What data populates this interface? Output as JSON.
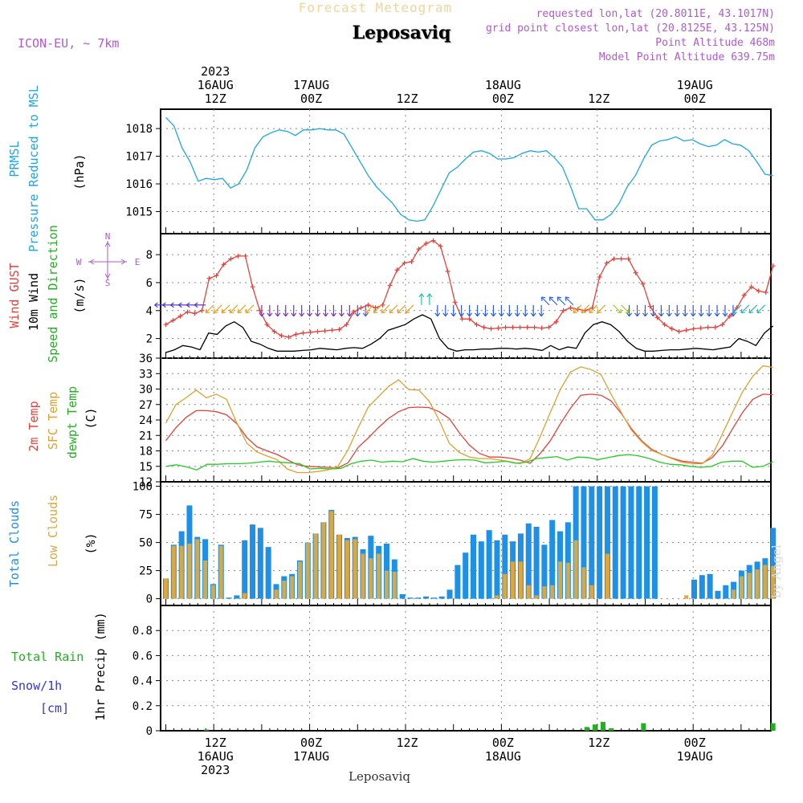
{
  "header": {
    "faint_title": "Forecast Meteogram",
    "station": "Leposaviq",
    "model": "ICON-EU, ~ 7km",
    "requested_point": "requested lon,lat (20.8011E, 43.1017N)",
    "grid_point": "grid point closest lon,lat (20.8125E, 43.125N)",
    "point_altitude": "Point Altitude 468m",
    "model_altitude": "Model Point Altitude 639.75m"
  },
  "footer": {
    "station": "Leposaviq",
    "watermark": "by Angel",
    "legend_rain": "Total  Rain",
    "legend_snow": "Snow/1h",
    "legend_cm": "[cm]"
  },
  "colors": {
    "pressure": "#1ca6e8",
    "gust": "#e8403a",
    "wind": "#000000",
    "temp2m": "#e8403a",
    "sfc": "#e0a030",
    "dewpt": "#22cc22",
    "total_clouds": "#1e90e6",
    "low_clouds": "#d9a840",
    "rain": "#22b022",
    "purple": "#b257d6"
  },
  "chart_data": {
    "time_axis": {
      "top_labels": [
        {
          "h": 6,
          "lines": [
            "2023",
            "16AUG",
            "12Z"
          ]
        },
        {
          "h": 18,
          "lines": [
            "17AUG",
            "00Z"
          ]
        },
        {
          "h": 30,
          "lines": [
            "12Z"
          ]
        },
        {
          "h": 42,
          "lines": [
            "18AUG",
            "00Z"
          ]
        },
        {
          "h": 54,
          "lines": [
            "12Z"
          ]
        },
        {
          "h": 66,
          "lines": [
            "19AUG",
            "00Z"
          ]
        }
      ],
      "bottom_labels": [
        {
          "h": 6,
          "lines": [
            "12Z",
            "16AUG",
            "2023"
          ]
        },
        {
          "h": 18,
          "lines": [
            "00Z",
            "17AUG"
          ]
        },
        {
          "h": 30,
          "lines": [
            "12Z"
          ]
        },
        {
          "h": 42,
          "lines": [
            "00Z",
            "18AUG"
          ]
        },
        {
          "h": 54,
          "lines": [
            "12Z"
          ]
        },
        {
          "h": 66,
          "lines": [
            "00Z",
            "19AUG"
          ]
        }
      ],
      "hour_range": [
        0,
        76
      ]
    },
    "panels": [
      {
        "type": "line",
        "id": "pressure",
        "labels": [
          "PRMSL",
          "Pressure Reduced to MSL",
          "(hPa)"
        ],
        "ylim": [
          1014.2,
          1018.7
        ],
        "yticks": [
          1015,
          1016,
          1017,
          1018
        ],
        "series": [
          {
            "name": "PRMSL",
            "values": [
              1018.4,
              1018.1,
              1017.3,
              1016.8,
              1016.1,
              1016.2,
              1016.15,
              1016.2,
              1015.85,
              1016.0,
              1016.5,
              1017.3,
              1017.7,
              1017.85,
              1017.95,
              1017.9,
              1017.75,
              1017.95,
              1017.95,
              1018.0,
              1017.95,
              1017.95,
              1017.8,
              1017.3,
              1016.8,
              1016.3,
              1015.9,
              1015.6,
              1015.3,
              1014.9,
              1014.7,
              1014.65,
              1014.7,
              1015.2,
              1015.8,
              1016.4,
              1016.6,
              1016.9,
              1017.15,
              1017.2,
              1017.1,
              1016.9,
              1016.9,
              1016.95,
              1017.1,
              1017.2,
              1017.15,
              1017.2,
              1016.95,
              1016.6,
              1015.9,
              1015.1,
              1015.1,
              1014.7,
              1014.7,
              1014.9,
              1015.3,
              1015.9,
              1016.3,
              1016.9,
              1017.4,
              1017.55,
              1017.6,
              1017.7,
              1017.55,
              1017.6,
              1017.45,
              1017.35,
              1017.4,
              1017.6,
              1017.45,
              1017.4,
              1017.2,
              1016.8,
              1016.35,
              1016.3
            ]
          }
        ]
      },
      {
        "type": "line",
        "id": "wind",
        "labels": [
          "Wind GUST",
          "10m Wind",
          "Speed and Direction",
          "(m/s)"
        ],
        "ylim": [
          0.6,
          9.5
        ],
        "yticks": [
          2,
          4,
          6,
          8
        ],
        "compass": {
          "n": "N",
          "s": "S",
          "w": "W",
          "e": "E"
        },
        "series": [
          {
            "name": "Wind GUST",
            "marker": "+",
            "values": [
              3.0,
              3.3,
              3.6,
              3.9,
              3.8,
              4.0,
              6.3,
              6.5,
              7.3,
              7.7,
              7.9,
              7.9,
              5.7,
              4.0,
              3.0,
              2.5,
              2.2,
              2.1,
              2.3,
              2.4,
              2.45,
              2.5,
              2.55,
              2.6,
              2.65,
              3.0,
              3.9,
              4.2,
              4.4,
              4.2,
              4.4,
              5.8,
              6.9,
              7.4,
              7.5,
              8.4,
              8.8,
              9.0,
              8.6,
              6.8,
              4.6,
              3.4,
              3.4,
              3.0,
              2.8,
              2.7,
              2.75,
              2.8,
              2.8,
              2.8,
              2.8,
              2.8,
              2.75,
              2.8,
              3.2,
              4.0,
              4.2,
              4.1,
              4.0,
              4.2,
              6.4,
              7.4,
              7.7,
              7.7,
              7.7,
              6.7,
              5.9,
              4.3,
              3.5,
              3.0,
              2.7,
              2.5,
              2.6,
              2.7,
              2.75,
              2.8,
              2.8,
              3.0,
              3.6,
              4.2,
              5.1,
              5.7,
              5.4,
              5.3,
              7.2
            ]
          },
          {
            "name": "10m Wind",
            "marker": "",
            "values": [
              1.0,
              1.2,
              1.5,
              1.4,
              1.2,
              2.4,
              2.3,
              2.9,
              3.2,
              2.8,
              1.8,
              1.6,
              1.3,
              1.1,
              1.1,
              1.1,
              1.15,
              1.2,
              1.3,
              1.25,
              1.2,
              1.3,
              1.35,
              1.3,
              1.6,
              2.0,
              2.6,
              2.8,
              3.0,
              3.4,
              3.7,
              3.4,
              2.0,
              1.3,
              1.1,
              1.2,
              1.2,
              1.25,
              1.25,
              1.3,
              1.3,
              1.25,
              1.3,
              1.25,
              1.15,
              1.5,
              1.2,
              1.4,
              1.3,
              2.4,
              3.0,
              3.2,
              3.0,
              2.5,
              1.8,
              1.3,
              1.1,
              1.1,
              1.15,
              1.2,
              1.2,
              1.25,
              1.3,
              1.25,
              1.2,
              1.3,
              1.4,
              2.0,
              1.8,
              1.5,
              2.4,
              2.9
            ]
          }
        ],
        "barbs": [
          {
            "from": 0,
            "to": 6,
            "dir": "W",
            "color": "#5533dd"
          },
          {
            "from": 6,
            "to": 12,
            "dir": "SW",
            "color": "#e8a020"
          },
          {
            "from": 12,
            "to": 24,
            "dir": "N",
            "color": "#7a2ad8"
          },
          {
            "from": 24,
            "to": 26,
            "dir": "N",
            "color": "#3a5ae8"
          },
          {
            "from": 26,
            "to": 32,
            "dir": "SW",
            "color": "#e8a020"
          },
          {
            "from": 32,
            "to": 34,
            "dir": "S",
            "color": "#22bbbb"
          },
          {
            "from": 34,
            "to": 48,
            "dir": "N",
            "color": "#2a5ae8"
          },
          {
            "from": 48,
            "to": 52,
            "dir": "NW",
            "color": "#3a6ae8"
          },
          {
            "from": 52,
            "to": 56,
            "dir": "SW",
            "color": "#e8a020"
          },
          {
            "from": 56,
            "to": 58,
            "dir": "SE",
            "color": "#99cc22"
          },
          {
            "from": 58,
            "to": 72,
            "dir": "N",
            "color": "#2a5ae8"
          },
          {
            "from": 72,
            "to": 76,
            "dir": "SW",
            "color": "#22bbbb"
          }
        ]
      },
      {
        "type": "line",
        "id": "temp",
        "labels": [
          "2m Temp",
          "SFC Temp",
          "dewpt Temp",
          "(C)"
        ],
        "ylim": [
          12,
          36
        ],
        "yticks": [
          12,
          15,
          18,
          21,
          24,
          27,
          30,
          33,
          36
        ],
        "series": [
          {
            "name": "2m Temp",
            "values": [
              20,
              22.5,
              24.5,
              25.8,
              25.8,
              25.6,
              25.0,
              23.3,
              20.6,
              18.8,
              18.0,
              17.3,
              16.3,
              15.3,
              15.0,
              14.9,
              14.8,
              14.7,
              15.7,
              18.7,
              20.5,
              22.5,
              24.3,
              25.6,
              26.4,
              26.5,
              26.4,
              25.6,
              24.3,
              21.5,
              19.1,
              17.5,
              16.8,
              16.8,
              16.6,
              16.2,
              15.6,
              17.5,
              20.0,
              23.3,
              26.3,
              28.8,
              29.0,
              28.8,
              27.7,
              25.3,
              22.3,
              20.0,
              18.3,
              17.3,
              16.6,
              16.0,
              15.8,
              15.6,
              16.7,
              19.0,
              22.3,
              25.5,
              28.0,
              29.0,
              28.9
            ]
          },
          {
            "name": "SFC Temp",
            "values": [
              23.4,
              27,
              28.3,
              29.8,
              28.3,
              29.0,
              28.0,
              23.5,
              19.5,
              17.8,
              17.0,
              16.3,
              14.5,
              13.8,
              13.8,
              14.0,
              14.3,
              15.0,
              18.2,
              22.5,
              26.5,
              28.5,
              30.5,
              31.8,
              29.9,
              29.8,
              27.7,
              24.0,
              19.5,
              17.7,
              16.8,
              16.5,
              16.5,
              16.2,
              15.9,
              15.5,
              16.5,
              20.8,
              25.5,
              30.0,
              33.3,
              34.3,
              33.8,
              32.8,
              29.0,
              25.5,
              22.0,
              19.8,
              18.1,
              17.3,
              16.5,
              15.8,
              15.5,
              15.5,
              17.2,
              21.3,
              25.5,
              29.5,
              32.5,
              34.5,
              34.2
            ]
          },
          {
            "name": "dewpt Temp",
            "values": [
              15.0,
              15.3,
              14.9,
              14.3,
              15.4,
              15.4,
              15.5,
              15.5,
              15.6,
              15.8,
              16.0,
              15.8,
              15.7,
              15.5,
              14.5,
              14.6,
              14.5,
              14.6,
              15.5,
              16.0,
              16.2,
              15.8,
              16.0,
              15.9,
              16.5,
              16.0,
              15.8,
              16.0,
              16.2,
              16.3,
              16.2,
              15.7,
              15.8,
              16.0,
              15.6,
              15.8,
              16.5,
              16.7,
              16.9,
              16.2,
              16.8,
              16.7,
              16.3,
              16.7,
              17.1,
              17.3,
              17.0,
              16.5,
              15.8,
              15.4,
              15.3,
              15.0,
              14.8,
              15.0,
              15.8,
              16.0,
              16.0,
              14.8,
              15.0,
              15.9
            ]
          }
        ]
      },
      {
        "type": "bar",
        "id": "clouds",
        "labels": [
          "Total Clouds",
          "Low Clouds",
          "(%)"
        ],
        "ylim": [
          -6,
          104
        ],
        "yticks": [
          0,
          25,
          50,
          75,
          100
        ],
        "series": [
          {
            "name": "Total Clouds",
            "values": [
              18,
              48,
              60,
              83,
              55,
              53,
              13,
              48,
              1,
              3,
              52,
              66,
              63,
              46,
              13,
              20,
              22,
              34,
              50,
              58,
              68,
              79,
              57,
              54,
              55,
              44,
              56,
              47,
              49,
              35,
              4,
              1,
              1,
              2,
              1,
              2,
              8,
              30,
              41,
              57,
              51,
              61,
              52,
              57,
              51,
              58,
              67,
              64,
              48,
              70,
              60,
              68,
              100,
              100,
              100,
              100,
              100,
              100,
              100,
              100,
              100,
              100,
              100,
              0,
              0,
              0,
              0,
              17,
              21,
              22,
              7,
              12,
              15,
              25,
              30,
              33,
              36,
              63
            ]
          },
          {
            "name": "Low Clouds",
            "values": [
              18,
              47,
              47,
              49,
              53,
              34,
              12,
              47,
              0,
              0,
              5,
              0,
              0,
              0,
              8,
              16,
              20,
              33,
              50,
              58,
              68,
              78,
              57,
              52,
              53,
              40,
              36,
              40,
              25,
              24,
              0,
              0,
              0,
              0,
              0,
              0,
              0,
              0,
              0,
              0,
              0,
              0,
              3,
              22,
              33,
              33,
              12,
              3,
              11,
              12,
              33,
              32,
              52,
              28,
              12,
              0,
              40,
              0,
              0,
              0,
              0,
              0,
              0,
              0,
              0,
              0,
              3,
              0,
              0,
              0,
              0,
              0,
              8,
              20,
              23,
              26,
              30,
              29
            ]
          }
        ]
      },
      {
        "type": "bar",
        "id": "precip",
        "labels": [
          "1hr Precip (mm)"
        ],
        "ylim": [
          0,
          1.0
        ],
        "yticks": [
          0,
          0.2,
          0.4,
          0.6,
          0.8
        ],
        "ytick_labels": [
          "0",
          "0.2",
          "0.4",
          "0.6",
          "0.8"
        ],
        "series": [
          {
            "name": "Total Rain",
            "values": [
              0,
              0,
              0,
              0,
              0,
              0.01,
              0,
              0,
              0,
              0,
              0,
              0,
              0,
              0,
              0,
              0,
              0,
              0,
              0,
              0,
              0,
              0,
              0,
              0,
              0,
              0,
              0,
              0,
              0,
              0,
              0,
              0,
              0,
              0,
              0,
              0,
              0,
              0,
              0,
              0,
              0,
              0,
              0,
              0,
              0,
              0,
              0,
              0,
              0,
              0,
              0,
              0,
              0.03,
              0.05,
              0.07,
              0.02,
              0,
              0,
              0,
              0.06,
              0,
              0,
              0,
              0,
              0,
              0,
              0,
              0,
              0,
              0,
              0,
              0,
              0,
              0,
              0,
              0.06
            ]
          }
        ]
      }
    ]
  }
}
